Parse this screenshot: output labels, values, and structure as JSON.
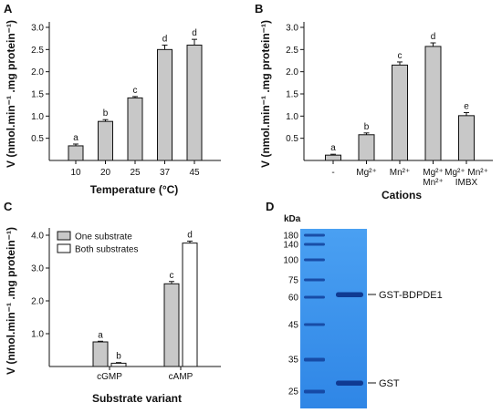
{
  "panels": {
    "A": {
      "label": "A"
    },
    "B": {
      "label": "B"
    },
    "C": {
      "label": "C"
    },
    "D": {
      "label": "D"
    }
  },
  "chart_data": [
    {
      "id": "A",
      "type": "bar",
      "categories": [
        "10",
        "20",
        "25",
        "37",
        "45"
      ],
      "values": [
        0.33,
        0.88,
        1.41,
        2.5,
        2.6
      ],
      "errors": [
        0.04,
        0.04,
        0.03,
        0.1,
        0.13
      ],
      "letters": [
        "a",
        "b",
        "c",
        "d",
        "d"
      ],
      "xlabel": "Temperature (°C)",
      "ylabel": "V (nmol.min⁻¹ .mg protein⁻¹)",
      "ylim": [
        0,
        3.0
      ],
      "yticks": [
        "0.5",
        "1.0",
        "1.5",
        "2.0",
        "2.5",
        "3.0"
      ],
      "bar_color": "#c8c8c8"
    },
    {
      "id": "B",
      "type": "bar",
      "categories": [
        [
          "-"
        ],
        [
          "Mg²⁺"
        ],
        [
          "Mn²⁺"
        ],
        [
          "Mg²⁺",
          "Mn²⁺"
        ],
        [
          "Mg²⁺ Mn²⁺",
          "IMBX"
        ]
      ],
      "values": [
        0.12,
        0.58,
        2.15,
        2.57,
        1.01
      ],
      "errors": [
        0.02,
        0.04,
        0.07,
        0.08,
        0.07
      ],
      "letters": [
        "a",
        "b",
        "c",
        "d",
        "e"
      ],
      "xlabel": "Cations",
      "ylabel": "V (nmol.min⁻¹ .mg protein⁻¹)",
      "ylim": [
        0,
        3.0
      ],
      "yticks": [
        "0.5",
        "1.0",
        "1.5",
        "2.0",
        "2.5",
        "3.0"
      ],
      "bar_color": "#c8c8c8"
    },
    {
      "id": "C",
      "type": "bar",
      "categories": [
        "cGMP",
        "cAMP"
      ],
      "series": [
        {
          "name": "One substrate",
          "values": [
            0.75,
            2.52
          ],
          "errors": [
            0.02,
            0.07
          ],
          "letters": [
            "a",
            "c"
          ],
          "color": "#c8c8c8"
        },
        {
          "name": "Both substrates",
          "values": [
            0.1,
            3.76
          ],
          "errors": [
            0.02,
            0.06
          ],
          "letters": [
            "b",
            "d"
          ],
          "color": "#ffffff"
        }
      ],
      "xlabel": "Substrate variant",
      "ylabel": "V (nmol.min⁻¹ .mg protein⁻¹)",
      "ylim": [
        0,
        4.0
      ],
      "yticks": [
        "1.0",
        "2.0",
        "3.0",
        "4.0"
      ],
      "legend": "top-left"
    }
  ],
  "gel": {
    "unit_label": "kDa",
    "markers": [
      "180",
      "140",
      "100",
      "75",
      "60",
      "45",
      "35",
      "25"
    ],
    "bands": [
      "GST-BDPDE1",
      "GST"
    ],
    "gel_color": "#3c92ec"
  }
}
